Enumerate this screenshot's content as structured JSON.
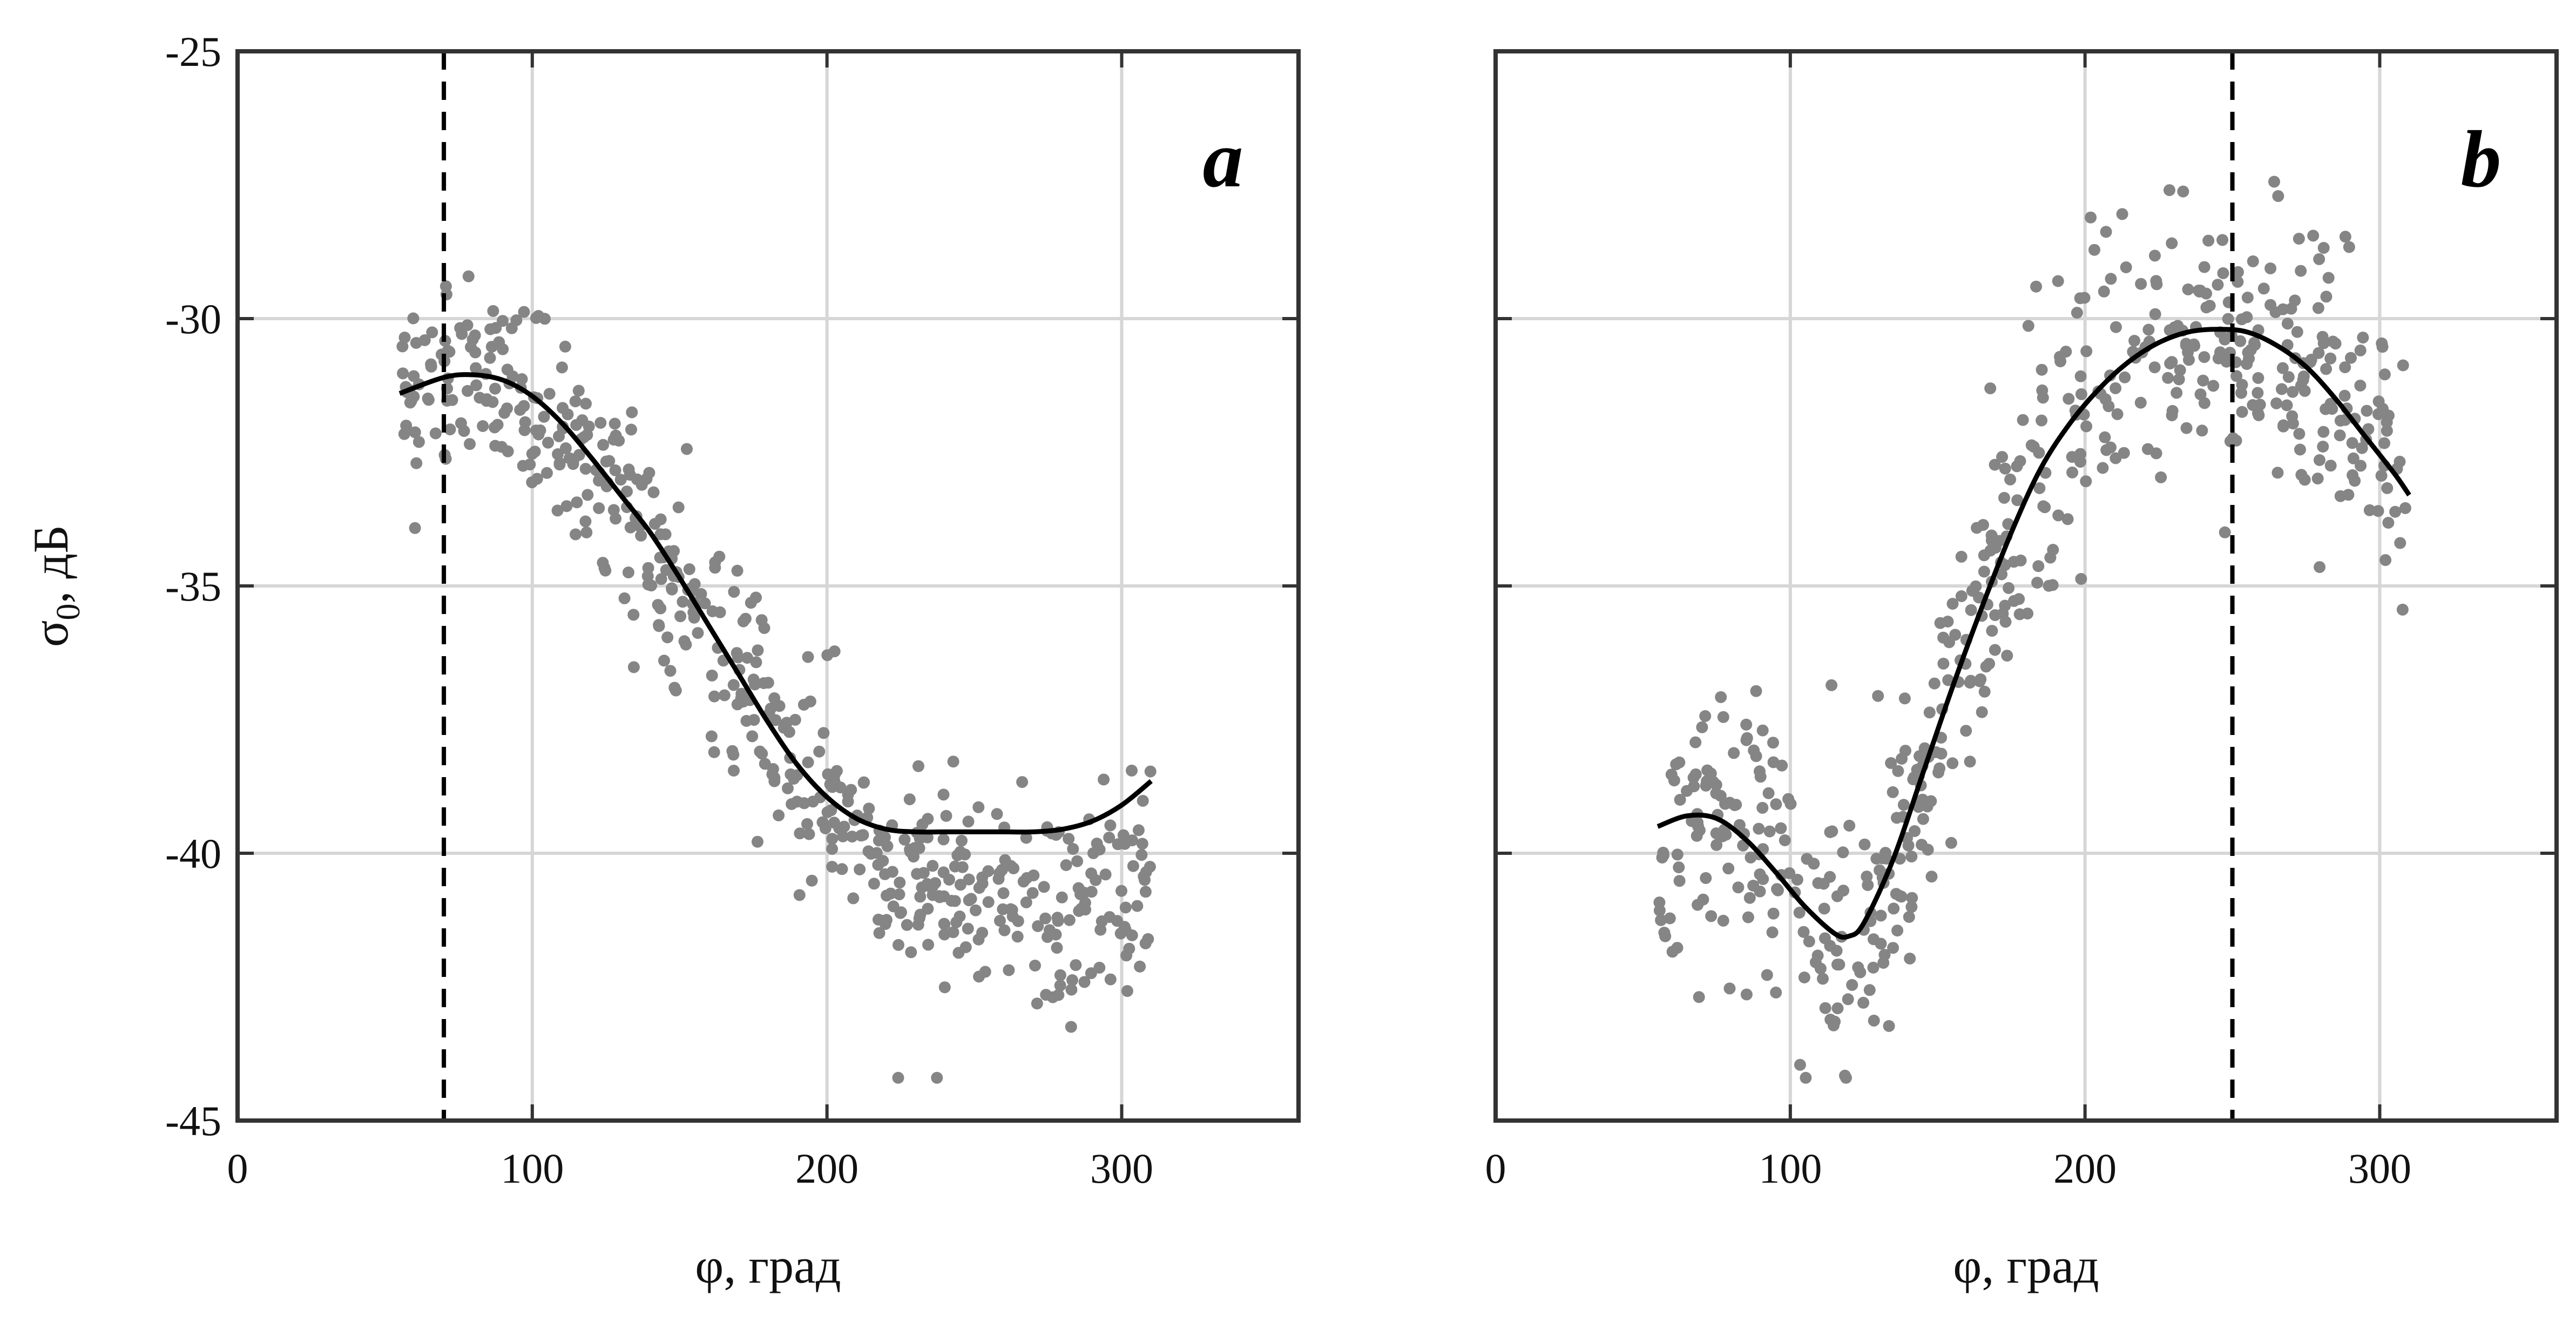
{
  "colors": {
    "points": "#858585",
    "curve": "#000000",
    "grid": "#d6d6d6",
    "axes": "#333333",
    "marker_line": "#000000"
  },
  "chart_data": [
    {
      "type": "scatter",
      "panel_label": "a",
      "xlabel": "φ, град",
      "ylabel": "σ₀, дБ",
      "ylabel_main": "σ",
      "ylabel_sub": "0",
      "ylabel_rest": ", дБ",
      "xlim": [
        0,
        360
      ],
      "ylim": [
        -45,
        -25
      ],
      "xticks": [
        0,
        100,
        200,
        300
      ],
      "yticks": [
        -25,
        -30,
        -35,
        -40,
        -45
      ],
      "grid": true,
      "vline_x": 70,
      "scatter_range": [
        55,
        310
      ],
      "fit_curve": {
        "x": [
          55,
          70,
          80,
          90,
          100,
          110,
          120,
          130,
          140,
          150,
          160,
          170,
          180,
          190,
          200,
          210,
          220,
          230,
          240,
          250,
          260,
          270,
          280,
          290,
          300,
          310
        ],
        "y": [
          -31.4,
          -31.1,
          -31.05,
          -31.15,
          -31.45,
          -31.95,
          -32.6,
          -33.3,
          -34.0,
          -34.85,
          -35.75,
          -36.65,
          -37.55,
          -38.35,
          -38.95,
          -39.35,
          -39.55,
          -39.6,
          -39.6,
          -39.6,
          -39.6,
          -39.6,
          -39.55,
          -39.4,
          -39.1,
          -38.65
        ]
      }
    },
    {
      "type": "scatter",
      "panel_label": "b",
      "xlabel": "φ, град",
      "xlim": [
        0,
        360
      ],
      "ylim": [
        -45,
        -25
      ],
      "xticks": [
        0,
        100,
        200,
        300
      ],
      "yticks": [
        -25,
        -30,
        -35,
        -40,
        -45
      ],
      "grid": true,
      "vline_x": 250,
      "scatter_range": [
        55,
        310
      ],
      "fit_curve": {
        "x": [
          55,
          65,
          75,
          85,
          95,
          105,
          115,
          120,
          125,
          135,
          145,
          155,
          165,
          175,
          185,
          195,
          205,
          215,
          225,
          235,
          245,
          255,
          265,
          275,
          285,
          295,
          305,
          310
        ],
        "y": [
          -39.5,
          -39.3,
          -39.35,
          -39.75,
          -40.35,
          -41.0,
          -41.5,
          -41.55,
          -41.3,
          -40.1,
          -38.5,
          -36.9,
          -35.4,
          -34.0,
          -32.8,
          -31.95,
          -31.3,
          -30.8,
          -30.45,
          -30.25,
          -30.2,
          -30.25,
          -30.5,
          -30.9,
          -31.5,
          -32.2,
          -32.9,
          -33.3
        ]
      }
    }
  ]
}
